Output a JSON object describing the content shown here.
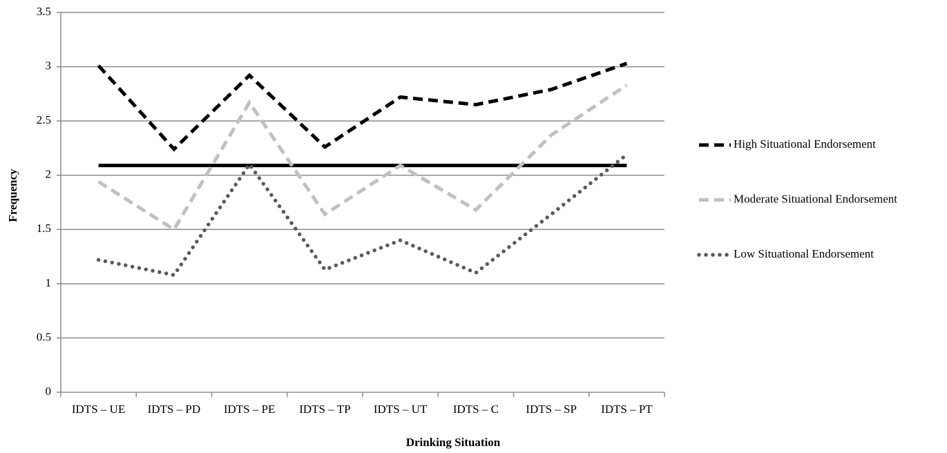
{
  "chart_data": {
    "type": "line",
    "x_label": "Drinking Situation",
    "y_label": "Frequency",
    "categories": [
      "IDTS – UE",
      "IDTS – PD",
      "IDTS – PE",
      "IDTS – TP",
      "IDTS – UT",
      "IDTS – C",
      "IDTS – SP",
      "IDTS – PT"
    ],
    "series": [
      {
        "name": "High Situational Endorsement",
        "color": "#000000",
        "dash": "dashed",
        "values": [
          3.01,
          2.24,
          2.92,
          2.26,
          2.72,
          2.65,
          2.79,
          3.03
        ]
      },
      {
        "name": "Moderate Situational Endorsement",
        "color": "#c0c0c0",
        "dash": "dashed",
        "values": [
          1.94,
          1.5,
          2.67,
          1.64,
          2.09,
          1.68,
          2.37,
          2.83
        ]
      },
      {
        "name": "Low Situational Endorsement",
        "color": "#595959",
        "dash": "dotted",
        "values": [
          1.22,
          1.08,
          2.1,
          1.13,
          1.4,
          1.1,
          1.64,
          2.19
        ]
      }
    ],
    "reference_line": {
      "value": 2.09,
      "color": "#000000"
    },
    "ylim": [
      0,
      3.5
    ],
    "yticks": [
      0,
      0.5,
      1,
      1.5,
      2,
      2.5,
      3,
      3.5
    ],
    "grid": true,
    "legend": "right"
  }
}
